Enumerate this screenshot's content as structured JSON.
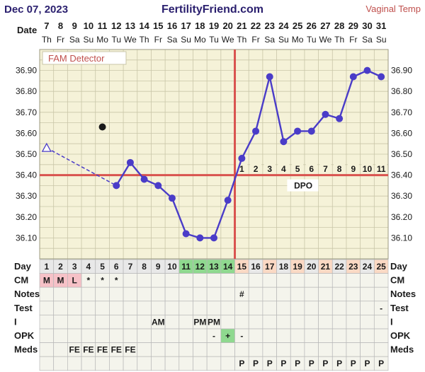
{
  "header": {
    "date": "Dec 07, 2023",
    "site": "FertilityFriend.com",
    "temp_label": "Vaginal Temp",
    "date_row_label": "Date",
    "fam_label": "FAM Detector",
    "dpo_label": "DPO"
  },
  "colors": {
    "background": "#f5f2d8",
    "grid": "#c9c6a8",
    "line": "#4a3cc8",
    "coverline": "#d9534f",
    "ovulation": "#d9534f",
    "menses": "#f6c1c7",
    "fertile": "#8fd98f",
    "post_ov": "#fbd9c4"
  },
  "chart_data": {
    "type": "line",
    "title": "",
    "x": [
      "7",
      "8",
      "9",
      "10",
      "11",
      "12",
      "13",
      "14",
      "15",
      "16",
      "17",
      "18",
      "19",
      "20",
      "21",
      "22",
      "23",
      "24",
      "25",
      "26",
      "27",
      "28",
      "29",
      "30",
      "31"
    ],
    "weekdays": [
      "Th",
      "Fr",
      "Sa",
      "Su",
      "Mo",
      "Tu",
      "We",
      "Th",
      "Fr",
      "Sa",
      "Su",
      "Mo",
      "Tu",
      "We",
      "Th",
      "Fr",
      "Sa",
      "Su",
      "Mo",
      "Tu",
      "We",
      "Th",
      "Fr",
      "Sa",
      "Su"
    ],
    "cycle_days": [
      "1",
      "2",
      "3",
      "4",
      "5",
      "6",
      "7",
      "8",
      "9",
      "10",
      "11",
      "12",
      "13",
      "14",
      "15",
      "16",
      "17",
      "18",
      "19",
      "20",
      "21",
      "22",
      "23",
      "24",
      "25"
    ],
    "ylim": [
      36.0,
      37.0
    ],
    "yticks": [
      "36.10",
      "36.20",
      "36.30",
      "36.40",
      "36.50",
      "36.60",
      "36.70",
      "36.80",
      "36.90"
    ],
    "series": [
      {
        "values": [
          36.53,
          null,
          null,
          null,
          null,
          36.35,
          36.46,
          36.38,
          36.35,
          36.29,
          36.12,
          36.1,
          36.1,
          36.28,
          36.48,
          36.61,
          36.87,
          36.56,
          36.61,
          36.61,
          36.69,
          36.67,
          36.87,
          36.9,
          36.87
        ]
      }
    ],
    "open_points": [
      {
        "day": "7",
        "value": 36.53
      }
    ],
    "discarded_points": [
      {
        "day": "11",
        "value": 36.63
      }
    ],
    "coverline": 36.4,
    "ovulation_day": "20",
    "dpo": [
      {
        "day": "21",
        "label": "1"
      },
      {
        "day": "22",
        "label": "2"
      },
      {
        "day": "23",
        "label": "3"
      },
      {
        "day": "24",
        "label": "4"
      },
      {
        "day": "25",
        "label": "5"
      },
      {
        "day": "26",
        "label": "6"
      },
      {
        "day": "27",
        "label": "7"
      },
      {
        "day": "28",
        "label": "8"
      },
      {
        "day": "29",
        "label": "9"
      },
      {
        "day": "30",
        "label": "10"
      },
      {
        "day": "31",
        "label": "11"
      }
    ],
    "rows": [
      {
        "label": "Day"
      },
      {
        "label": "CM",
        "cells": {
          "0": "M",
          "1": "M",
          "2": "L",
          "3": "*",
          "4": "*",
          "5": "*"
        }
      },
      {
        "label": "Notes",
        "cells": {
          "14": "#"
        }
      },
      {
        "label": "Test",
        "cells": {
          "24": "-"
        }
      },
      {
        "label": "I",
        "cells": {
          "8": "AM",
          "11": "PM",
          "12": "PM"
        }
      },
      {
        "label": "OPK",
        "cells": {
          "12": "-",
          "13": "+",
          "14": "-"
        }
      },
      {
        "label": "Meds",
        "cells": {
          "2": "FE",
          "3": "FE",
          "4": "FE",
          "5": "FE",
          "6": "FE"
        }
      },
      {
        "label": "",
        "cells": {
          "14": "P",
          "15": "P",
          "16": "P",
          "17": "P",
          "18": "P",
          "19": "P",
          "20": "P",
          "21": "P",
          "22": "P",
          "23": "P",
          "24": "P"
        }
      }
    ]
  }
}
